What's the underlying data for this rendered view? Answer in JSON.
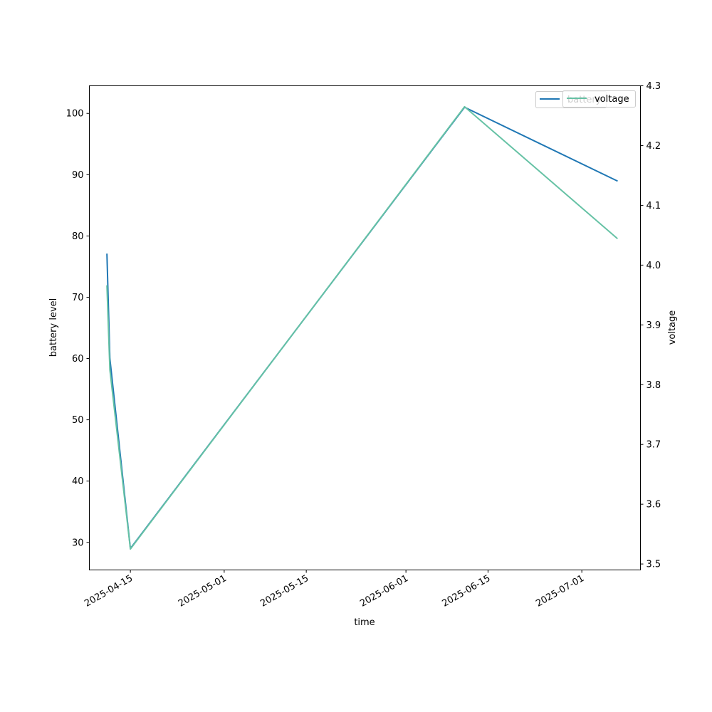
{
  "chart_data": {
    "type": "line",
    "xlabel": "time",
    "ylabel_left": "battery level",
    "ylabel_right": "voltage",
    "x_ticks": [
      "2025-04-15",
      "2025-05-01",
      "2025-05-15",
      "2025-06-01",
      "2025-06-15",
      "2025-07-01"
    ],
    "y_left_ticks": [
      30,
      40,
      50,
      60,
      70,
      80,
      90,
      100
    ],
    "y_right_ticks": [
      "3.5",
      "3.6",
      "3.7",
      "3.8",
      "3.9",
      "4.0",
      "4.1",
      "4.2",
      "4.3"
    ],
    "y_left_range": [
      25.5,
      104.5
    ],
    "y_right_range": [
      3.49,
      4.3
    ],
    "x_range": [
      "2025-04-08",
      "2025-07-11"
    ],
    "grid": false,
    "legend_position": "top-right",
    "series": [
      {
        "name": "battery",
        "axis": "left",
        "color": "#1f77b4",
        "points": [
          {
            "x": "2025-04-11T00:00",
            "y": 77
          },
          {
            "x": "2025-04-11T12:00",
            "y": 60
          },
          {
            "x": "2025-04-15T00:00",
            "y": 29
          },
          {
            "x": "2025-06-11T00:00",
            "y": 101
          },
          {
            "x": "2025-07-07T00:00",
            "y": 89
          }
        ]
      },
      {
        "name": "voltage",
        "axis": "right",
        "color": "#66c2a5",
        "points": [
          {
            "x": "2025-04-11T00:00",
            "y": 3.965
          },
          {
            "x": "2025-04-11T12:00",
            "y": 3.825
          },
          {
            "x": "2025-04-15T00:00",
            "y": 3.525
          },
          {
            "x": "2025-06-11T00:00",
            "y": 4.265
          },
          {
            "x": "2025-07-07T00:00",
            "y": 4.045
          }
        ]
      }
    ]
  }
}
